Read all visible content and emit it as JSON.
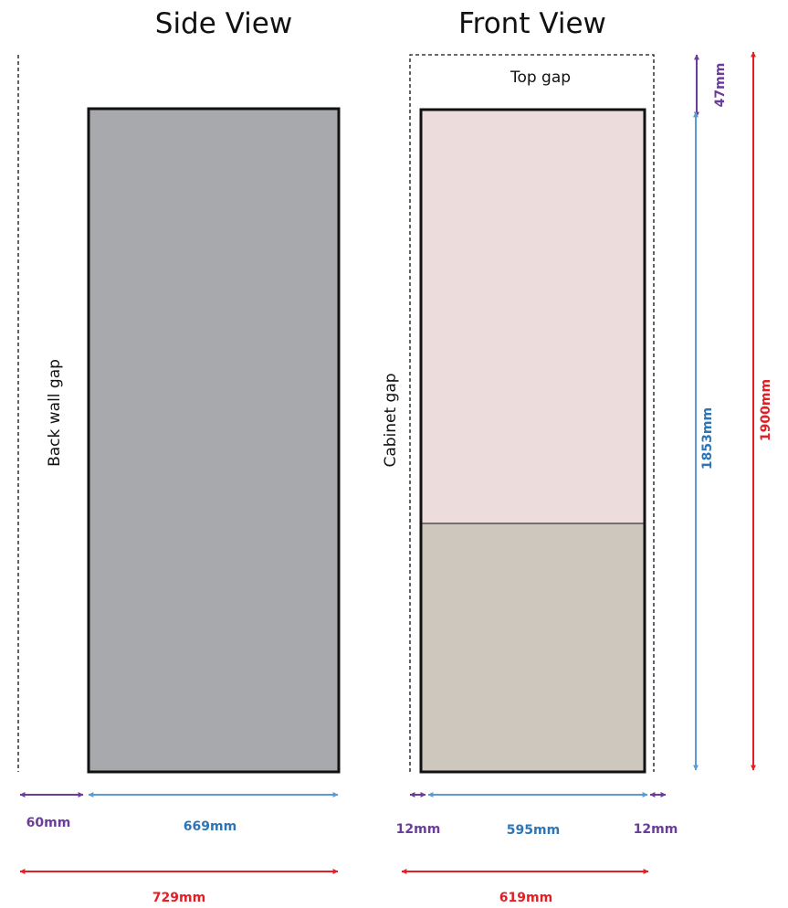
{
  "titles": {
    "side_view": "Side View",
    "front_view": "Front View"
  },
  "labels": {
    "back_wall_gap": "Back wall gap",
    "cabinet_gap": "Cabinet gap",
    "top_gap": "Top gap"
  },
  "dimensions": {
    "back_gap": "60mm",
    "side_depth": "669mm",
    "side_total": "729mm",
    "left_gap": "12mm",
    "front_width": "595mm",
    "right_gap": "12mm",
    "front_total": "619mm",
    "top_gap": "47mm",
    "height": "1853mm",
    "total_height": "1900mm"
  },
  "colors": {
    "side_body": "#a8a9ad",
    "front_upper": "#ecdcdc",
    "front_lower": "#cec7be",
    "purple": "#6a3d9a",
    "blue": "#5b9bd5",
    "blue_text": "#2e75b6",
    "red": "#e31e24"
  }
}
